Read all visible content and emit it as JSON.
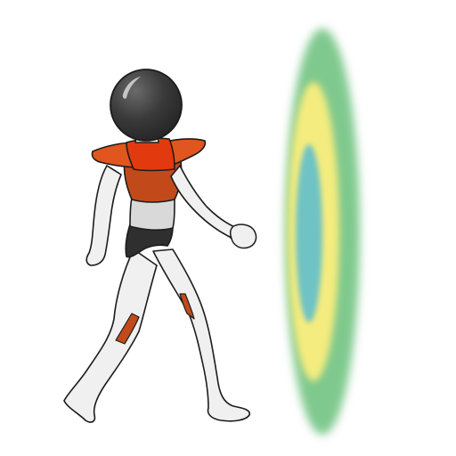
{
  "scene": {
    "subject": "walking-figure",
    "object": "portal"
  },
  "colors": {
    "background": "#ffffff",
    "helmet": "#3a3a3a",
    "helmet_highlight": "#d8d8d8",
    "armor_orange": "#e0561e",
    "armor_dark": "#c24a1a",
    "armor_red": "#e23a0e",
    "suit_white": "#f0f0f0",
    "suit_gray": "#d9d9d9",
    "briefs": "#2f2f2f",
    "outline": "#1c1c1c",
    "portal_outer": "#7fc98e",
    "portal_middle": "#f4ec7e",
    "portal_inner": "#6fc3c4"
  }
}
